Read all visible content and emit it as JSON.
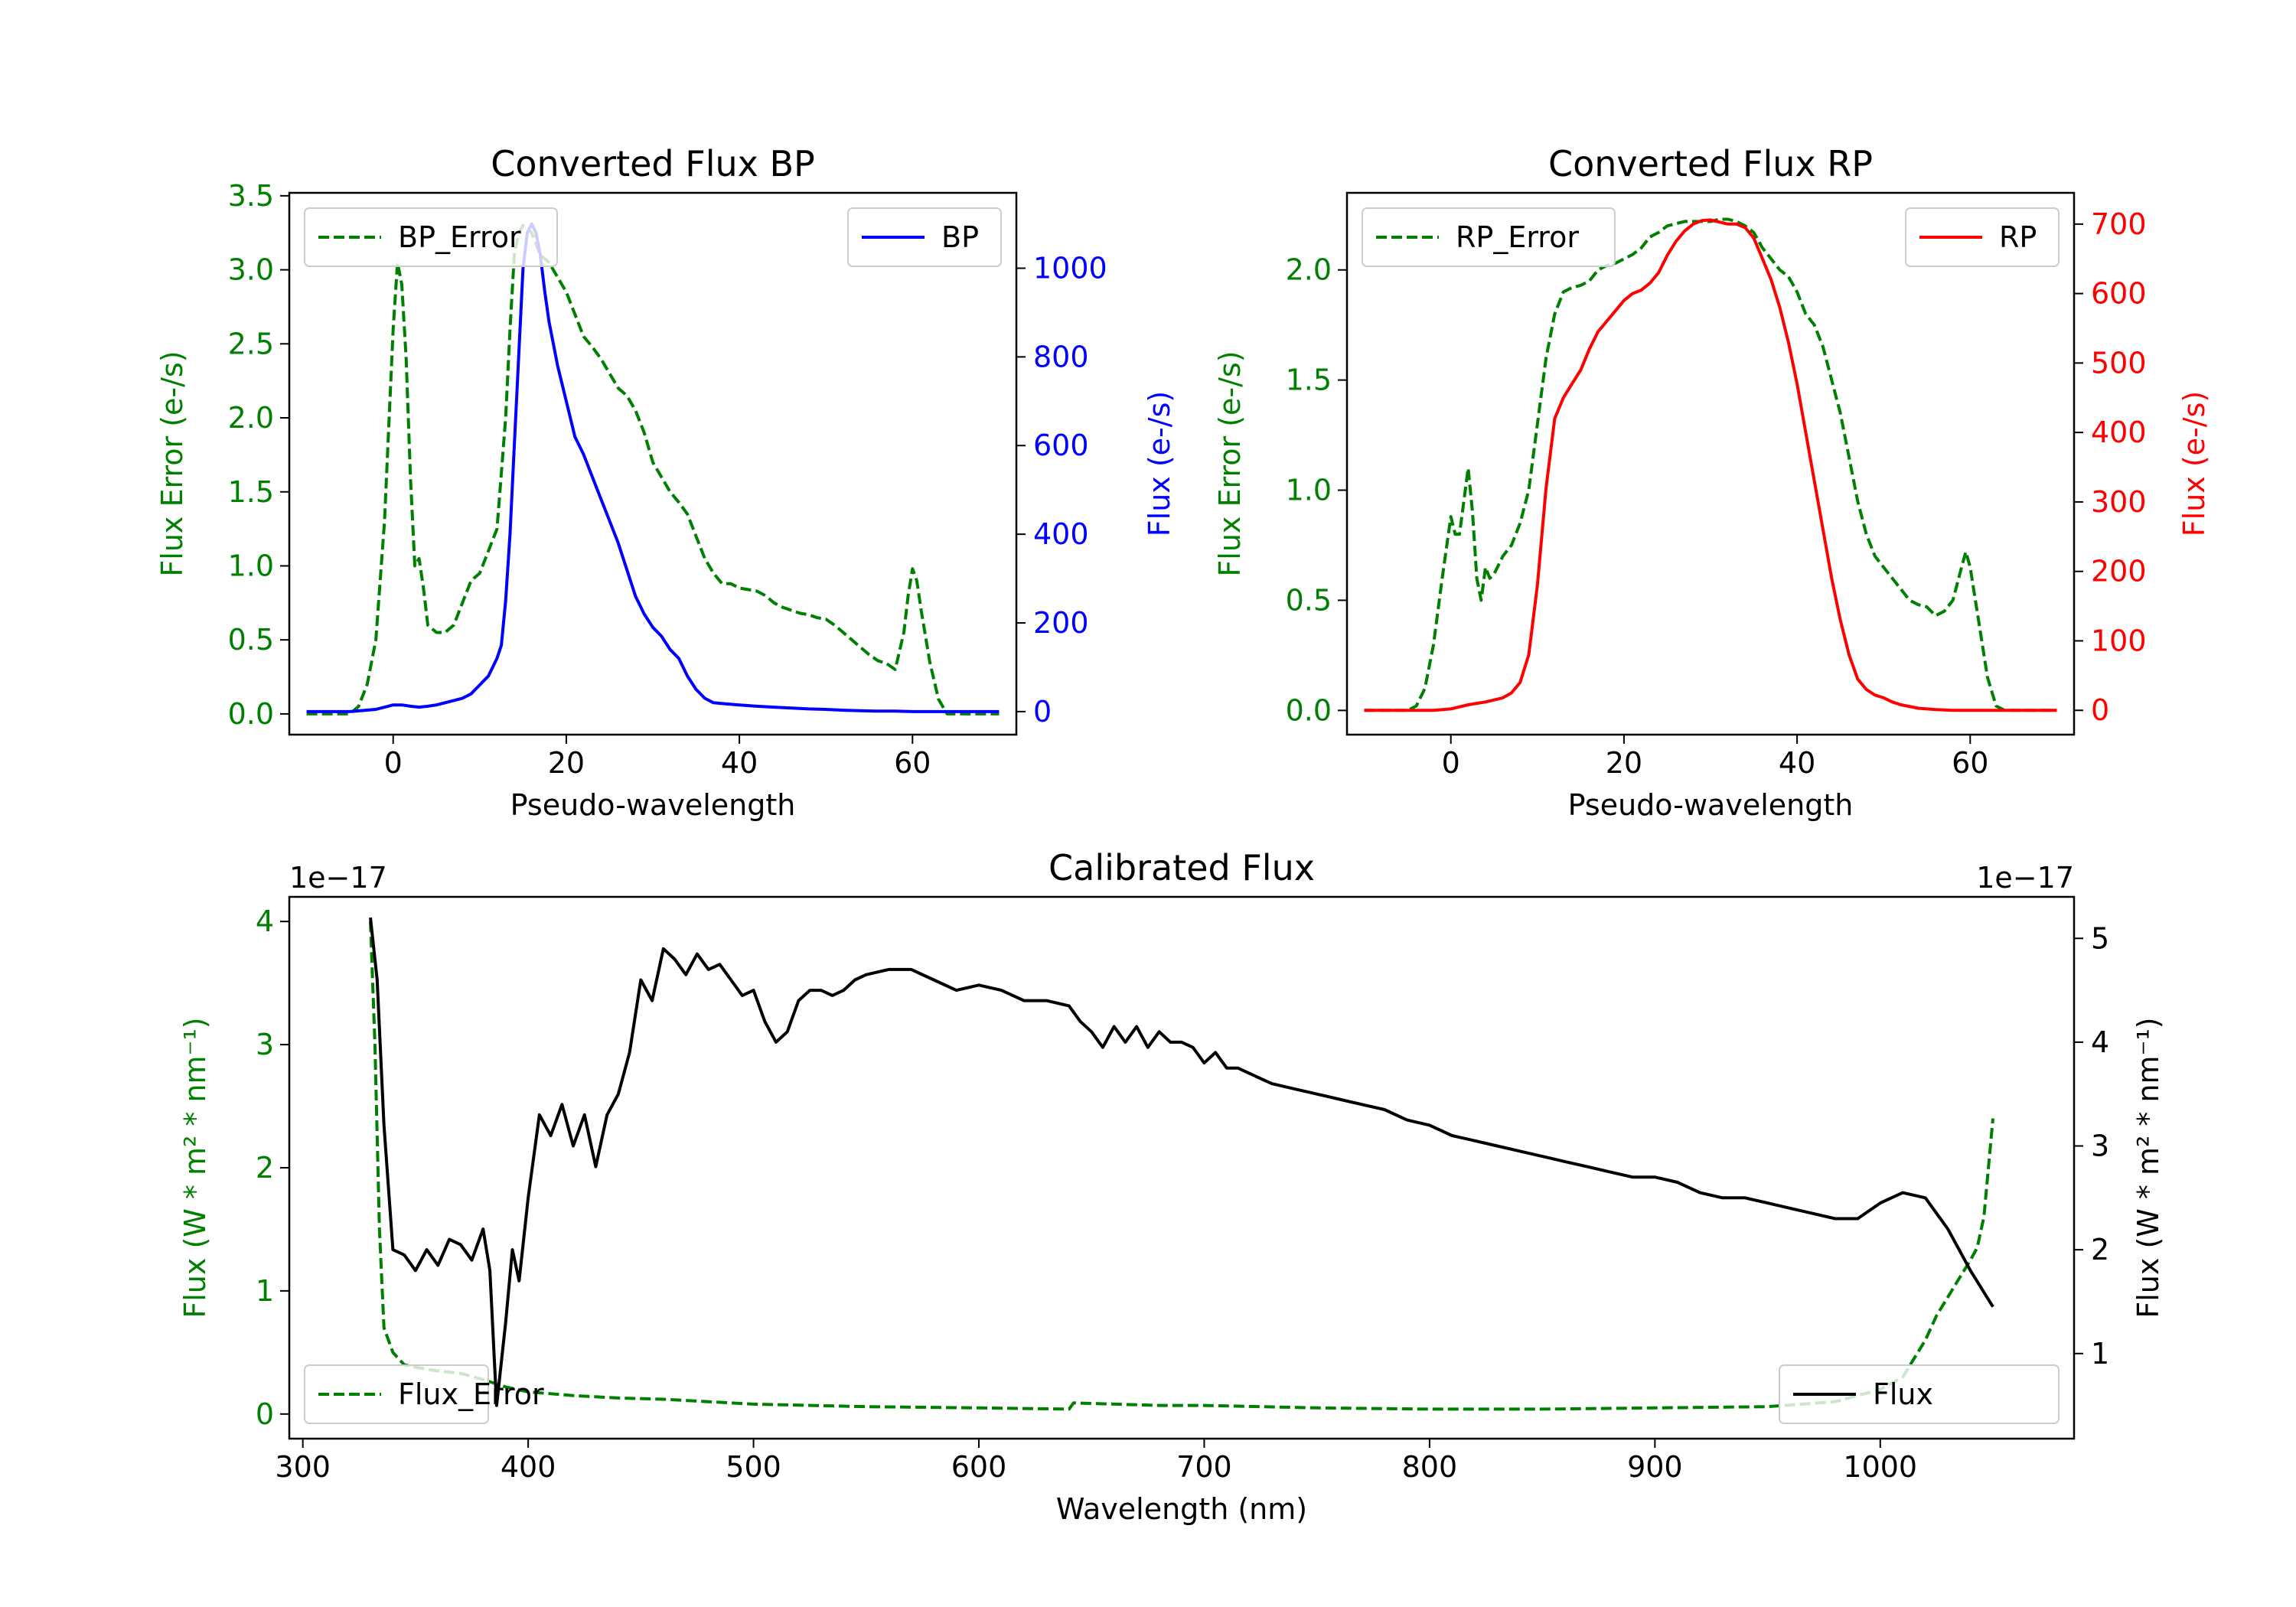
{
  "colors": {
    "green": "#008000",
    "blue": "#0000ff",
    "red": "#ff0000",
    "black": "#000000"
  },
  "chart_data": [
    {
      "id": "bp",
      "type": "line",
      "title": "Converted Flux BP",
      "xlabel": "Pseudo-wavelength",
      "ylabel_left": "Flux Error (e-/s)",
      "ylabel_right": "Flux (e-/s)",
      "xlim": [
        -12,
        72
      ],
      "ylim_left": [
        -0.14,
        3.52
      ],
      "ylim_right": [
        -52,
        1170
      ],
      "xticks": [
        "0",
        "20",
        "40",
        "60"
      ],
      "yticks_left": [
        "0.0",
        "0.5",
        "1.0",
        "1.5",
        "2.0",
        "2.5",
        "3.0",
        "3.5"
      ],
      "yticks_right": [
        "0",
        "200",
        "400",
        "600",
        "800",
        "1000"
      ],
      "legend_left": "top-left",
      "legend_right": "top-right",
      "series": [
        {
          "name": "BP_Error",
          "axis": "left",
          "style": "dashed",
          "color": "green",
          "x": [
            -10,
            -6,
            -5,
            -4,
            -3,
            -2,
            -1,
            0,
            0.5,
            1,
            1.5,
            2,
            2.5,
            3,
            3.5,
            4,
            5,
            6,
            7,
            8,
            9,
            10,
            11,
            12,
            13,
            13.5,
            14,
            14.5,
            15,
            16,
            17,
            18,
            19,
            20,
            21,
            22,
            23,
            24,
            25,
            26,
            27,
            28,
            29,
            30,
            31,
            32,
            33,
            34,
            35,
            36,
            37,
            38,
            39,
            40,
            41,
            42,
            43,
            44,
            45,
            46,
            47,
            48,
            49,
            50,
            51,
            52,
            53,
            54,
            55,
            56,
            57,
            58,
            59,
            59.5,
            60,
            60.5,
            61,
            62,
            63,
            64,
            65,
            66,
            67,
            68,
            69,
            70
          ],
          "y": [
            0,
            0,
            0,
            0.05,
            0.2,
            0.5,
            1.3,
            2.6,
            3.05,
            2.9,
            2.4,
            1.6,
            1.0,
            1.05,
            0.85,
            0.6,
            0.55,
            0.55,
            0.6,
            0.75,
            0.9,
            0.95,
            1.1,
            1.25,
            2.0,
            2.6,
            3.1,
            3.25,
            3.3,
            3.25,
            3.1,
            3.05,
            2.95,
            2.85,
            2.7,
            2.55,
            2.48,
            2.4,
            2.3,
            2.2,
            2.15,
            2.05,
            1.9,
            1.7,
            1.6,
            1.5,
            1.43,
            1.35,
            1.2,
            1.05,
            0.95,
            0.88,
            0.88,
            0.85,
            0.84,
            0.83,
            0.8,
            0.75,
            0.72,
            0.7,
            0.68,
            0.67,
            0.65,
            0.64,
            0.6,
            0.55,
            0.5,
            0.45,
            0.4,
            0.36,
            0.34,
            0.3,
            0.55,
            0.8,
            0.98,
            0.9,
            0.7,
            0.35,
            0.1,
            0,
            0,
            0,
            0,
            0,
            0,
            0
          ]
        },
        {
          "name": "BP",
          "axis": "right",
          "style": "solid",
          "color": "blue",
          "x": [
            -10,
            -5,
            -2,
            0,
            1,
            2,
            3,
            4,
            5,
            6,
            7,
            8,
            9,
            10,
            11,
            12,
            12.5,
            13,
            13.5,
            14,
            14.5,
            15,
            15.5,
            16,
            16.5,
            17,
            17.5,
            18,
            19,
            20,
            21,
            22,
            23,
            24,
            25,
            26,
            27,
            28,
            29,
            30,
            31,
            32,
            33,
            34,
            35,
            36,
            37,
            38,
            40,
            42,
            44,
            46,
            48,
            50,
            52,
            54,
            56,
            58,
            60,
            62,
            65,
            70
          ],
          "y": [
            0,
            0,
            5,
            15,
            15,
            12,
            10,
            12,
            15,
            20,
            25,
            30,
            40,
            60,
            80,
            120,
            150,
            250,
            400,
            600,
            800,
            1000,
            1080,
            1100,
            1080,
            1030,
            950,
            880,
            780,
            700,
            620,
            580,
            530,
            480,
            430,
            380,
            320,
            260,
            220,
            190,
            170,
            140,
            120,
            80,
            50,
            30,
            20,
            18,
            15,
            12,
            10,
            8,
            6,
            5,
            3,
            2,
            1,
            1,
            0,
            0,
            0,
            0
          ]
        }
      ]
    },
    {
      "id": "rp",
      "type": "line",
      "title": "Converted Flux RP",
      "xlabel": "Pseudo-wavelength",
      "ylabel_left": "Flux Error (e-/s)",
      "ylabel_right": "Flux (e-/s)",
      "xlim": [
        -12,
        72
      ],
      "ylim_left": [
        -0.11,
        2.35
      ],
      "ylim_right": [
        -35,
        745
      ],
      "xticks": [
        "0",
        "20",
        "40",
        "60"
      ],
      "yticks_left": [
        "0.0",
        "0.5",
        "1.0",
        "1.5",
        "2.0"
      ],
      "yticks_right": [
        "0",
        "100",
        "200",
        "300",
        "400",
        "500",
        "600",
        "700"
      ],
      "legend_left": "top-left",
      "legend_right": "top-right",
      "series": [
        {
          "name": "RP_Error",
          "axis": "left",
          "style": "dashed",
          "color": "green",
          "x": [
            -10,
            -5,
            -4,
            -3,
            -2,
            -1,
            0,
            0.5,
            1,
            1.5,
            2,
            2.5,
            3,
            3.5,
            4,
            4.5,
            5,
            6,
            7,
            8,
            9,
            10,
            11,
            12,
            13,
            14,
            15,
            16,
            17,
            18,
            19,
            20,
            21,
            22,
            23,
            24,
            25,
            26,
            27,
            28,
            29,
            30,
            31,
            32,
            33,
            34,
            35,
            36,
            37,
            38,
            39,
            40,
            41,
            42,
            43,
            44,
            45,
            46,
            47,
            48,
            49,
            50,
            51,
            52,
            53,
            54,
            55,
            56,
            57,
            58,
            59,
            59.5,
            60,
            61,
            62,
            63,
            64,
            66,
            70
          ],
          "y": [
            0,
            0,
            0.02,
            0.1,
            0.3,
            0.6,
            0.88,
            0.8,
            0.8,
            0.95,
            1.1,
            0.9,
            0.6,
            0.5,
            0.65,
            0.6,
            0.62,
            0.7,
            0.75,
            0.85,
            1.0,
            1.3,
            1.6,
            1.8,
            1.9,
            1.92,
            1.93,
            1.95,
            2.0,
            2.02,
            2.03,
            2.05,
            2.07,
            2.1,
            2.15,
            2.17,
            2.2,
            2.21,
            2.22,
            2.22,
            2.22,
            2.22,
            2.23,
            2.23,
            2.22,
            2.2,
            2.17,
            2.1,
            2.05,
            2.0,
            1.97,
            1.9,
            1.8,
            1.75,
            1.65,
            1.5,
            1.35,
            1.15,
            0.95,
            0.8,
            0.7,
            0.65,
            0.6,
            0.55,
            0.5,
            0.48,
            0.47,
            0.43,
            0.45,
            0.5,
            0.65,
            0.72,
            0.65,
            0.4,
            0.15,
            0.02,
            0,
            0,
            0
          ]
        },
        {
          "name": "RP",
          "axis": "right",
          "style": "solid",
          "color": "red",
          "x": [
            -10,
            -4,
            -2,
            0,
            2,
            4,
            6,
            7,
            8,
            9,
            10,
            11,
            12,
            13,
            14,
            15,
            16,
            17,
            18,
            19,
            20,
            21,
            22,
            23,
            24,
            25,
            26,
            27,
            28,
            29,
            30,
            31,
            32,
            33,
            34,
            35,
            36,
            37,
            38,
            39,
            40,
            41,
            42,
            43,
            44,
            45,
            46,
            47,
            48,
            49,
            50,
            51,
            52,
            54,
            56,
            58,
            60,
            62,
            66,
            70
          ],
          "y": [
            0,
            0,
            0,
            2,
            8,
            12,
            18,
            25,
            40,
            80,
            180,
            320,
            420,
            450,
            470,
            490,
            520,
            545,
            560,
            575,
            590,
            600,
            605,
            615,
            630,
            655,
            675,
            690,
            700,
            705,
            706,
            703,
            700,
            700,
            695,
            680,
            650,
            620,
            580,
            530,
            470,
            400,
            330,
            260,
            190,
            130,
            80,
            45,
            30,
            22,
            18,
            12,
            8,
            3,
            1,
            0,
            0,
            0,
            0,
            0
          ]
        }
      ]
    },
    {
      "id": "cal",
      "type": "line",
      "title": "Calibrated Flux",
      "xlabel": "Wavelength (nm)",
      "ylabel_left": "Flux (W * m² * nm⁻¹)",
      "ylabel_right": "Flux (W * m² * nm⁻¹)",
      "offset_left": "1e−17",
      "offset_right": "1e−17",
      "xlim": [
        294,
        1086
      ],
      "ylim_left": [
        -0.2,
        4.2
      ],
      "ylim_right": [
        0.18,
        5.4
      ],
      "xticks": [
        "300",
        "400",
        "500",
        "600",
        "700",
        "800",
        "900",
        "1000"
      ],
      "yticks_left": [
        "0",
        "1",
        "2",
        "3",
        "4"
      ],
      "yticks_right": [
        "1",
        "2",
        "3",
        "4",
        "5"
      ],
      "legend_left": "bottom-left",
      "legend_right": "bottom-right",
      "series": [
        {
          "name": "Flux_Error",
          "axis": "left",
          "style": "dashed",
          "color": "green",
          "x": [
            330,
            332,
            334,
            336,
            340,
            345,
            350,
            360,
            370,
            380,
            390,
            400,
            420,
            440,
            460,
            480,
            500,
            550,
            600,
            640,
            642,
            680,
            700,
            750,
            800,
            850,
            900,
            950,
            980,
            1000,
            1010,
            1015,
            1020,
            1025,
            1030,
            1035,
            1040,
            1043,
            1046,
            1048,
            1050
          ],
          "y": [
            4.0,
            3.0,
            1.5,
            0.7,
            0.5,
            0.4,
            0.38,
            0.35,
            0.33,
            0.28,
            0.22,
            0.18,
            0.15,
            0.13,
            0.12,
            0.1,
            0.08,
            0.06,
            0.05,
            0.04,
            0.09,
            0.07,
            0.07,
            0.05,
            0.04,
            0.04,
            0.05,
            0.06,
            0.1,
            0.2,
            0.3,
            0.45,
            0.6,
            0.8,
            0.95,
            1.1,
            1.25,
            1.35,
            1.6,
            2.0,
            2.4
          ]
        },
        {
          "name": "Flux",
          "axis": "right",
          "style": "solid",
          "color": "black",
          "x": [
            330,
            333,
            336,
            340,
            345,
            350,
            355,
            360,
            365,
            370,
            375,
            380,
            383,
            386,
            390,
            393,
            396,
            400,
            405,
            410,
            415,
            420,
            425,
            430,
            435,
            440,
            445,
            450,
            455,
            460,
            465,
            470,
            475,
            480,
            485,
            490,
            495,
            500,
            505,
            510,
            515,
            520,
            525,
            530,
            535,
            540,
            545,
            550,
            560,
            570,
            580,
            590,
            600,
            610,
            620,
            630,
            640,
            645,
            650,
            655,
            660,
            665,
            670,
            675,
            680,
            685,
            690,
            695,
            700,
            705,
            710,
            715,
            720,
            725,
            730,
            740,
            750,
            760,
            770,
            780,
            790,
            800,
            810,
            820,
            830,
            840,
            850,
            860,
            870,
            880,
            890,
            900,
            910,
            920,
            930,
            940,
            950,
            960,
            970,
            980,
            990,
            1000,
            1010,
            1020,
            1030,
            1040,
            1050
          ],
          "y": [
            5.2,
            4.6,
            3.2,
            2.0,
            1.95,
            1.8,
            2.0,
            1.85,
            2.1,
            2.05,
            1.9,
            2.2,
            1.8,
            0.5,
            1.3,
            2.0,
            1.7,
            2.5,
            3.3,
            3.1,
            3.4,
            3.0,
            3.3,
            2.8,
            3.3,
            3.5,
            3.9,
            4.6,
            4.4,
            4.9,
            4.8,
            4.65,
            4.85,
            4.7,
            4.75,
            4.6,
            4.45,
            4.5,
            4.2,
            4.0,
            4.1,
            4.4,
            4.5,
            4.5,
            4.45,
            4.5,
            4.6,
            4.65,
            4.7,
            4.7,
            4.6,
            4.5,
            4.55,
            4.5,
            4.4,
            4.4,
            4.35,
            4.2,
            4.1,
            3.95,
            4.15,
            4.0,
            4.15,
            3.95,
            4.1,
            4.0,
            4.0,
            3.95,
            3.8,
            3.9,
            3.75,
            3.75,
            3.7,
            3.65,
            3.6,
            3.55,
            3.5,
            3.45,
            3.4,
            3.35,
            3.25,
            3.2,
            3.1,
            3.05,
            3.0,
            2.95,
            2.9,
            2.85,
            2.8,
            2.75,
            2.7,
            2.7,
            2.65,
            2.55,
            2.5,
            2.5,
            2.45,
            2.4,
            2.35,
            2.3,
            2.3,
            2.45,
            2.55,
            2.5,
            2.2,
            1.8,
            1.45
          ]
        }
      ]
    }
  ]
}
